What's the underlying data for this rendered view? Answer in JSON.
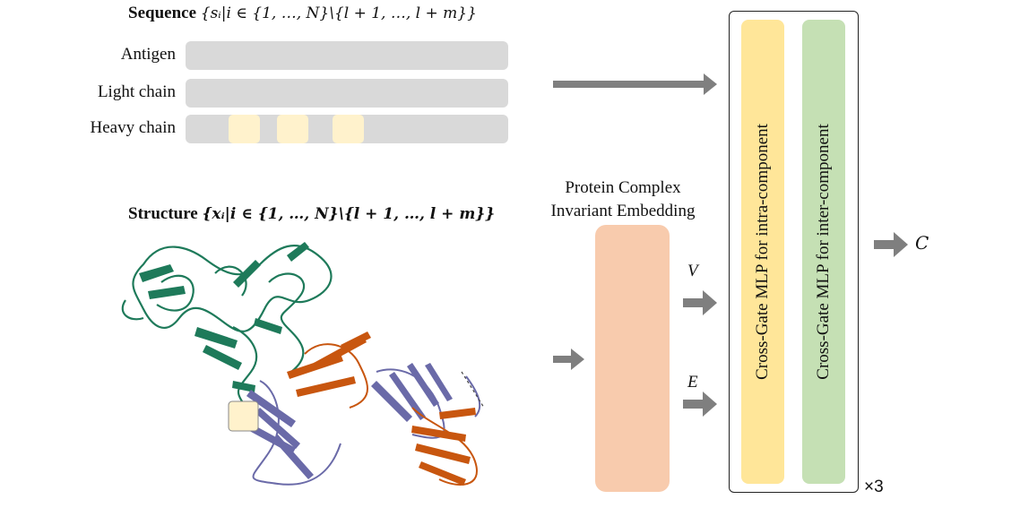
{
  "sequence": {
    "title_bold": "Sequence",
    "title_math": "{sᵢ|i ∈ {1, …, N}\\{l + 1, …, l + m}}",
    "rows": [
      {
        "label": "Antigen"
      },
      {
        "label": "Light chain"
      },
      {
        "label": "Heavy chain"
      }
    ]
  },
  "structure": {
    "title_bold": "Structure",
    "title_math": "{xᵢ|i ∈ {1, …, N}\\{l + 1, …, l + m}}"
  },
  "embedding": {
    "title_line1": "Protein Complex",
    "title_line2": "Invariant Embedding",
    "output_v": "V",
    "output_e": "E"
  },
  "mlp": {
    "intra_label": "Cross-Gate MLP for intra-component",
    "inter_label": "Cross-Gate MLP for inter-component",
    "repeat": "×3"
  },
  "output": {
    "label": "C"
  },
  "colors": {
    "bar": "#d9d9d9",
    "highlight": "#fff2cc",
    "embedding": "#f8cbad",
    "mlp_intra": "#ffe699",
    "mlp_inter": "#c5e0b4",
    "arrow": "#7f7f7f",
    "antigen_chain": "#1e7a5a",
    "light_chain": "#6a6aa8",
    "heavy_chain": "#c8560f"
  }
}
